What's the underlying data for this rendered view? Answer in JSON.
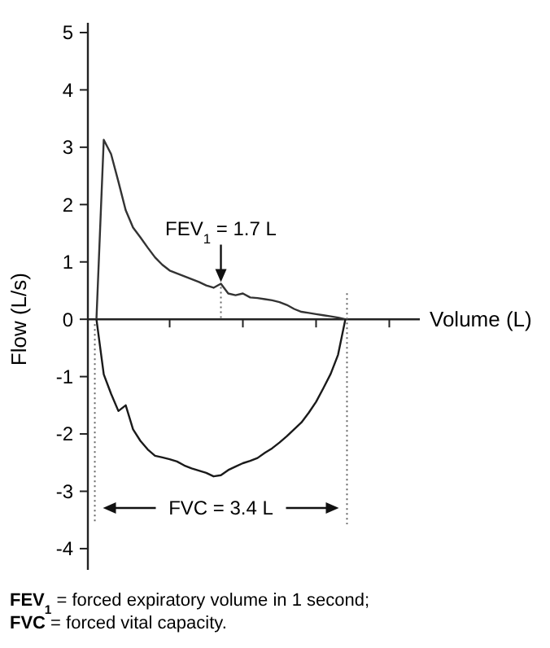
{
  "chart_data": {
    "type": "line",
    "xlabel": "Volume (L)",
    "ylabel": "Flow (L/s)",
    "categories": [
      null,
      null,
      null,
      null,
      null,
      null,
      null,
      null,
      null,
      null,
      null,
      null,
      null,
      null,
      null,
      null,
      null,
      null,
      null,
      null,
      null,
      null,
      null,
      null,
      null,
      null,
      null,
      null,
      null,
      null,
      null,
      null,
      null,
      null,
      null,
      null,
      null,
      null,
      null,
      null,
      null,
      null,
      null,
      null
    ],
    "ylim": [
      -4.37,
      5.17
    ],
    "yticks": [
      -4,
      -3,
      -2,
      -1,
      0,
      1,
      2,
      3,
      4,
      5
    ],
    "marker": "none",
    "line_style": "solid",
    "series": [
      {
        "color": "#333333",
        "values": [
          0,
          3.13,
          2.88,
          2.4,
          1.9,
          1.6,
          1.43,
          1.25,
          1.08,
          0.95,
          0.85,
          0.8,
          0.75,
          0.7,
          0.65,
          0.59,
          0.55,
          0.62,
          0.45,
          0.42,
          0.45,
          0.38,
          0.37,
          0.35,
          0.33,
          0.3,
          0.25,
          0.18,
          0.13,
          0.11,
          0.09,
          0.07,
          0.05,
          0.03,
          0,
          null,
          null,
          null,
          null,
          null,
          null,
          null,
          null,
          null
        ]
      },
      {
        "color": "#1a1a1a",
        "values": [
          0,
          -0.96,
          -1.3,
          -1.6,
          -1.5,
          -1.92,
          -2.12,
          -2.27,
          -2.38,
          -2.41,
          -2.44,
          -2.48,
          -2.55,
          -2.6,
          -2.64,
          -2.68,
          -2.74,
          -2.72,
          -2.63,
          -2.57,
          -2.51,
          -2.47,
          -2.42,
          -2.33,
          -2.25,
          -2.15,
          -2.04,
          -1.92,
          -1.8,
          -1.63,
          -1.44,
          -1.2,
          -0.95,
          -0.62,
          0,
          null,
          null,
          null,
          null,
          null,
          null,
          null,
          null,
          null
        ]
      }
    ],
    "annotations": [
      "FEV$_{1}$ = 1.7 L",
      "FVC = 3.4 L",
      "FEV$_{1}$ = forced expiratory volume in 1 second;",
      "FVC = forced vital capacity."
    ]
  }
}
